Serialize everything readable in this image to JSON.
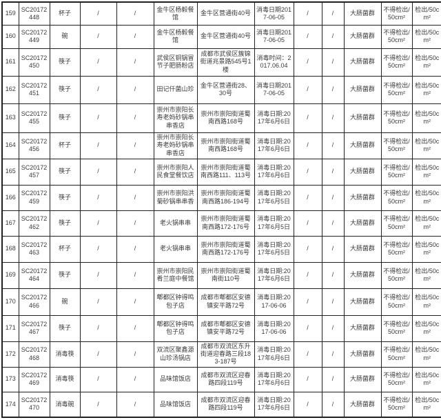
{
  "colors": {
    "background": "#ffffff",
    "border": "#1f1f1f",
    "text": "#3a3a3a"
  },
  "table": {
    "description_fields": [
      "no",
      "sample_code",
      "item",
      "col4",
      "col5",
      "unit_name",
      "address",
      "disinfect_date",
      "col9",
      "col10",
      "indicator",
      "standard",
      "result"
    ],
    "rows": [
      {
        "no": "159",
        "sample_code": "SC20172448",
        "item": "杯子",
        "col4": "/",
        "col5": "/",
        "unit_name": "金牛区杨毅餐馆",
        "address": "金牛区营通街40号",
        "disinfect_date": "消毒日期2017-06-05",
        "col9": "/",
        "col10": "/",
        "indicator": "大肠菌群",
        "standard": "不得检出/50cm²",
        "result": "检出/50cm²"
      },
      {
        "no": "160",
        "sample_code": "SC20172449",
        "item": "碗",
        "col4": "/",
        "col5": "/",
        "unit_name": "金牛区杨毅餐馆",
        "address": "金牛区营通街40号",
        "disinfect_date": "消毒日期2017-06-05",
        "col9": "/",
        "col10": "/",
        "indicator": "大肠菌群",
        "standard": "不得检出/50cm²",
        "result": "检出/50cm²"
      },
      {
        "no": "161",
        "sample_code": "SC20172450",
        "item": "筷子",
        "col4": "/",
        "col5": "/",
        "unit_name": "武侯区铜锅冒节子肥肠粉店",
        "address": "成都市武侯区簇锦街道兆景路545号1楼",
        "disinfect_date": "消毒时间：2017.06.04",
        "col9": "/",
        "col10": "/",
        "indicator": "大肠菌群",
        "standard": "不得检出/50cm²",
        "result": "检出/50cm²"
      },
      {
        "no": "162",
        "sample_code": "SC20172451",
        "item": "筷子",
        "col4": "/",
        "col5": "/",
        "unit_name": "田记仟菌山珍",
        "address": "金牛区营通街28、30号",
        "disinfect_date": "消毒日期2017-06-05",
        "col9": "/",
        "col10": "/",
        "indicator": "大肠菌群",
        "standard": "不得检出/50cm²",
        "result": "检出/50cm²"
      },
      {
        "no": "163",
        "sample_code": "SC20172455",
        "item": "筷子",
        "col4": "/",
        "col5": "/",
        "unit_name": "崇州市崇阳长寿老妈砂锅串串香店",
        "address": "崇州市崇阳街道蜀南西路168号",
        "disinfect_date": "消毒日期:2017年6月6日",
        "col9": "/",
        "col10": "/",
        "indicator": "大肠菌群",
        "standard": "不得检出/50cm²",
        "result": "检出/50cm²"
      },
      {
        "no": "164",
        "sample_code": "SC20172456",
        "item": "杯子",
        "col4": "/",
        "col5": "/",
        "unit_name": "崇州市崇阳长寿老妈砂锅串串香店",
        "address": "崇州市崇阳街道蜀南西路168号",
        "disinfect_date": "消毒日期:2017年6月6日",
        "col9": "/",
        "col10": "/",
        "indicator": "大肠菌群",
        "standard": "不得检出/50cm²",
        "result": "检出/50cm²"
      },
      {
        "no": "165",
        "sample_code": "SC20172457",
        "item": "筷子",
        "col4": "/",
        "col5": "/",
        "unit_name": "崇州市崇阳人民食堂餐饮店",
        "address": "崇州市崇阳街道蜀南西路111、113号",
        "disinfect_date": "消毒日期:2017年6月6日",
        "col9": "/",
        "col10": "/",
        "indicator": "大肠菌群",
        "standard": "不得检出/50cm²",
        "result": "检出/50cm²"
      },
      {
        "no": "166",
        "sample_code": "SC20172459",
        "item": "筷子",
        "col4": "/",
        "col5": "/",
        "unit_name": "崇州市崇阳洪菊砂锅串串香",
        "address": "崇州市崇阳街道蜀南西路186-194号",
        "disinfect_date": "消毒日期:2017年6月5日",
        "col9": "/",
        "col10": "/",
        "indicator": "大肠菌群",
        "standard": "不得检出/50cm²",
        "result": "检出/50cm²"
      },
      {
        "no": "167",
        "sample_code": "SC20172462",
        "item": "筷子",
        "col4": "/",
        "col5": "/",
        "unit_name": "老火锅串串",
        "address": "崇州市崇阳街道蜀南西路172-176号",
        "disinfect_date": "消毒日期:2017年6月5日",
        "col9": "/",
        "col10": "/",
        "indicator": "大肠菌群",
        "standard": "不得检出/50cm²",
        "result": "检出/50cm²"
      },
      {
        "no": "168",
        "sample_code": "SC20172463",
        "item": "杯子",
        "col4": "/",
        "col5": "/",
        "unit_name": "老火锅串串",
        "address": "崇州市崇阳街道蜀南西路172-176号",
        "disinfect_date": "消毒日期:2017年6月5日",
        "col9": "/",
        "col10": "/",
        "indicator": "大肠菌群",
        "standard": "不得检出/50cm²",
        "result": "检出/50cm²"
      },
      {
        "no": "169",
        "sample_code": "SC20172464",
        "item": "筷子",
        "col4": "/",
        "col5": "/",
        "unit_name": "崇州市崇阳民肴兰庭中餐馆",
        "address": "崇州市崇阳街道蜀南街110号",
        "disinfect_date": "消毒日期:2017年6月6日",
        "col9": "/",
        "col10": "/",
        "indicator": "大肠菌群",
        "standard": "不得检出/50cm²",
        "result": "检出/50cm²"
      },
      {
        "no": "170",
        "sample_code": "SC20172466",
        "item": "碗",
        "col4": "/",
        "col5": "/",
        "unit_name": "郫都区钟得鸣包子店",
        "address": "成都市郫都区安德镇安平路72号",
        "disinfect_date": "消毒日期:2017-06-06",
        "col9": "/",
        "col10": "/",
        "indicator": "大肠菌群",
        "standard": "不得检出/50cm²",
        "result": "检出/50cm²"
      },
      {
        "no": "171",
        "sample_code": "SC20172467",
        "item": "筷子",
        "col4": "/",
        "col5": "/",
        "unit_name": "郫都区钟得鸣包子店",
        "address": "成都市郫都区安德镇安平路72号",
        "disinfect_date": "消毒日期:2017-06-06",
        "col9": "/",
        "col10": "/",
        "indicator": "大肠菌群",
        "standard": "不得检出/50cm²",
        "result": "检出/50cm²"
      },
      {
        "no": "172",
        "sample_code": "SC20172468",
        "item": "消毒筷",
        "col4": "/",
        "col5": "/",
        "unit_name": "双流区聚鑫源山珍汤锅店",
        "address": "成都市双流区东升街道迎春路三段183-187号",
        "disinfect_date": "消毒日期:2017年6月6日",
        "col9": "/",
        "col10": "/",
        "indicator": "大肠菌群",
        "standard": "不得检出/50cm²",
        "result": "检出/50cm²"
      },
      {
        "no": "173",
        "sample_code": "SC20172469",
        "item": "消毒筷",
        "col4": "/",
        "col5": "/",
        "unit_name": "品味馆饭店",
        "address": "成都市双流区迎春路四段119号",
        "disinfect_date": "消毒日期:2017年6月6日",
        "col9": "/",
        "col10": "/",
        "indicator": "大肠菌群",
        "standard": "不得检出/50cm²",
        "result": "检出/50cm²"
      },
      {
        "no": "174",
        "sample_code": "SC20172470",
        "item": "消毒碗",
        "col4": "/",
        "col5": "/",
        "unit_name": "品味馆饭店",
        "address": "成都市双流区迎春路四段119号",
        "disinfect_date": "消毒日期:2017年6月6日",
        "col9": "/",
        "col10": "/",
        "indicator": "大肠菌群",
        "standard": "不得检出/50cm²",
        "result": "检出/50cm²"
      }
    ]
  }
}
